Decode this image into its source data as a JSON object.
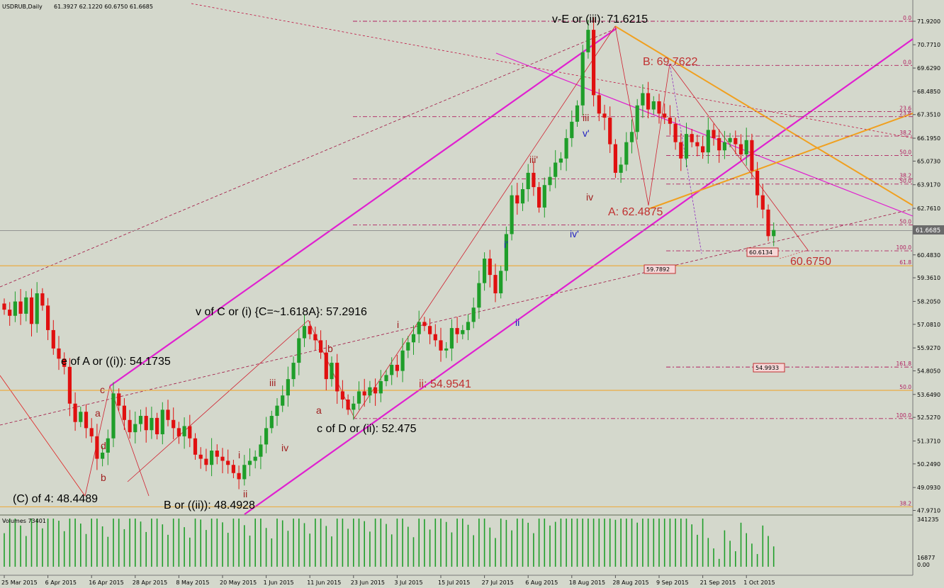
{
  "header": {
    "symbol": "USDRUB,Daily",
    "ohlc": "61.3927 62.1220 60.6750 61.6685"
  },
  "volume_header": "Volumes 73401",
  "colors": {
    "background": "#d4d8cc",
    "bull": "#1f9e2a",
    "bear": "#e01010",
    "channel": "#e020d0",
    "orange": "#f0a020",
    "fib": "#b02060",
    "dark_red_line": "#b01040"
  },
  "price_axis": {
    "labels": [
      "71.9200",
      "70.7710",
      "69.6290",
      "68.4850",
      "67.3510",
      "66.1950",
      "65.0730",
      "63.9170",
      "62.7610",
      "61.6685",
      "60.4830",
      "59.3610",
      "58.2050",
      "57.0810",
      "55.9270",
      "54.8050",
      "53.6490",
      "52.5270",
      "51.3710",
      "50.2490",
      "49.0930",
      "47.9710"
    ],
    "values": [
      71.92,
      70.771,
      69.629,
      68.485,
      67.351,
      66.195,
      65.073,
      63.917,
      62.761,
      61.6685,
      60.483,
      59.361,
      58.205,
      57.081,
      55.927,
      54.805,
      53.649,
      52.527,
      51.371,
      50.249,
      49.093,
      47.971
    ],
    "current_price": "61.6685",
    "vol_labels": [
      "341235",
      "16877",
      "0.00"
    ],
    "vol_values": [
      341235,
      16877,
      0
    ]
  },
  "date_axis": {
    "labels": [
      "25 Mar 2015",
      "6 Apr 2015",
      "16 Apr 2015",
      "28 Apr 2015",
      "8 May 2015",
      "20 May 2015",
      "1 Jun 2015",
      "11 Jun 2015",
      "23 Jun 2015",
      "3 Jul 2015",
      "15 Jul 2015",
      "27 Jul 2015",
      "6 Aug 2015",
      "18 Aug 2015",
      "28 Aug 2015",
      "9 Sep 2015",
      "21 Sep 2015",
      "1 Oct 2015"
    ],
    "bar_index": [
      0,
      8,
      16,
      24,
      32,
      40,
      48,
      56,
      64,
      72,
      80,
      88,
      96,
      104,
      112,
      120,
      128,
      136
    ]
  },
  "annotations": {
    "top": "v-E or (iii): 71.6215",
    "b_label": "B: 69.7622",
    "a_label": "A: 62.4875",
    "low_label": "60.6750",
    "v_of_c": "v of C or (i) {C=~1.618A}: 57.2916",
    "e_of_a": "e of A or ((i)): 54.1735",
    "c_of_4": "(C) of 4: 48.4489",
    "b_ii": "B or ((ii)): 48.4928",
    "c_of_d": "c of D or (ii): 52.475",
    "ii_label": "ii: 54.9541",
    "waves_red": [
      "iii",
      "iv",
      "i",
      "ii",
      "iii",
      "iv",
      "a",
      "b",
      "c",
      "a",
      "b",
      "c",
      "d",
      "i"
    ],
    "waves_blue": [
      "v'",
      "iii'",
      "iv'",
      "i'",
      "ii"
    ]
  },
  "price_tags": {
    "t1": "60.6134",
    "t2": "59.7892",
    "t3": "54.9933"
  },
  "fib_levels": {
    "labels": [
      "0.0",
      "0.0",
      "23.6",
      "23.6",
      "38.2",
      "50.0",
      "38.2",
      "50.0",
      "50.0",
      "100.0",
      "61.8",
      "161.8",
      "50.0",
      "100.0",
      "38.2"
    ],
    "prices": [
      71.92,
      69.76,
      67.5,
      67.25,
      66.3,
      65.35,
      64.2,
      63.95,
      61.95,
      60.68,
      59.95,
      54.99,
      53.85,
      52.47,
      48.15
    ]
  },
  "chart_data": {
    "type": "candlestick",
    "title": "USDRUB,Daily",
    "ylim": [
      47.6,
      72.5
    ],
    "key_points": [
      {
        "label": "(C) of 4",
        "value": 48.4489
      },
      {
        "label": "e of A or ((i))",
        "value": 54.1735
      },
      {
        "label": "B or ((ii))",
        "value": 48.4928
      },
      {
        "label": "v of C or (i)",
        "value": 57.2916
      },
      {
        "label": "c of D or (ii)",
        "value": 52.475
      },
      {
        "label": "ii",
        "value": 54.9541
      },
      {
        "label": "v-E or (iii)",
        "value": 71.6215
      },
      {
        "label": "A",
        "value": 62.4875
      },
      {
        "label": "B",
        "value": 69.7622
      },
      {
        "label": "low",
        "value": 60.675
      }
    ],
    "closes": [
      57.8,
      57.5,
      58.2,
      57.6,
      58.4,
      57.1,
      58.6,
      58.0,
      56.8,
      55.9,
      55.4,
      55.0,
      53.2,
      52.3,
      52.8,
      52.0,
      51.6,
      50.5,
      50.8,
      51.5,
      53.7,
      53.1,
      52.4,
      51.8,
      52.2,
      52.6,
      51.9,
      52.5,
      51.7,
      52.9,
      52.4,
      52.0,
      51.6,
      52.1,
      51.5,
      50.7,
      50.5,
      50.2,
      50.9,
      50.6,
      50.4,
      50.2,
      49.8,
      49.5,
      50.2,
      50.4,
      50.6,
      51.2,
      52.0,
      52.6,
      53.1,
      53.6,
      54.4,
      55.2,
      56.4,
      57.0,
      56.6,
      56.3,
      55.7,
      54.4,
      55.2,
      53.8,
      53.4,
      52.9,
      53.2,
      53.8,
      53.6,
      54.0,
      53.7,
      54.3,
      54.6,
      55.1,
      54.8,
      55.8,
      56.2,
      56.6,
      57.2,
      57.0,
      56.6,
      56.3,
      55.8,
      55.9,
      56.9,
      56.6,
      56.8,
      57.2,
      57.9,
      59.1,
      60.3,
      59.5,
      58.6,
      59.7,
      61.5,
      63.4,
      63.0,
      63.7,
      64.5,
      63.8,
      62.8,
      63.9,
      64.3,
      65.0,
      65.2,
      66.2,
      67.0,
      67.8,
      70.4,
      71.5,
      68.3,
      67.4,
      67.2,
      65.9,
      64.5,
      64.9,
      66.0,
      66.5,
      67.8,
      68.4,
      67.6,
      68.0,
      67.4,
      67.2,
      66.9,
      66.0,
      65.2,
      66.4,
      66.0,
      65.8,
      65.5,
      66.6,
      66.2,
      65.6,
      66.0,
      66.2,
      65.9,
      65.4,
      66.1,
      64.6,
      63.4,
      62.7,
      61.4,
      61.7
    ]
  }
}
